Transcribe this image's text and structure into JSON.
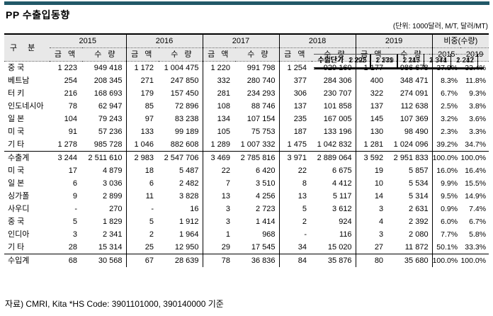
{
  "title": "PP 수출입동향",
  "unit_note": "(단위: 1000달러, M/T, 달러/MT)",
  "accent_color": "#215868",
  "header_bg_color": "#E8E8E8",
  "footer": "자료) CMRI, Kita *HS Code: 3901101000, 390140000 기준",
  "table": {
    "group_header": "구 분",
    "amount_label": "금 액",
    "quantity_label": "수 량",
    "share_header": "비중(수량)",
    "years": [
      "2015",
      "2016",
      "2017",
      "2018",
      "2019"
    ],
    "share_years": [
      "2015",
      "2019"
    ],
    "export_rows": [
      {
        "label": "중 국",
        "amounts": [
          "1 223",
          "1 172",
          "1 220",
          "1 254",
          "1 177"
        ],
        "quantities": [
          "949 418",
          "1 004 475",
          "991 798",
          "929 160",
          "986 678"
        ],
        "shares": [
          "37.8%",
          "33.4%"
        ]
      },
      {
        "label": "베트남",
        "amounts": [
          "254",
          "271",
          "332",
          "377",
          "400"
        ],
        "quantities": [
          "208 345",
          "247 850",
          "280 740",
          "284 306",
          "348 471"
        ],
        "shares": [
          "8.3%",
          "11.8%"
        ]
      },
      {
        "label": "터 키",
        "amounts": [
          "216",
          "179",
          "281",
          "306",
          "322"
        ],
        "quantities": [
          "168 693",
          "157 450",
          "234 293",
          "230 707",
          "274 091"
        ],
        "shares": [
          "6.7%",
          "9.3%"
        ]
      },
      {
        "label": "인도네시아",
        "amounts": [
          "78",
          "85",
          "108",
          "137",
          "137"
        ],
        "quantities": [
          "62 947",
          "72 896",
          "88 746",
          "101 858",
          "112 638"
        ],
        "shares": [
          "2.5%",
          "3.8%"
        ]
      },
      {
        "label": "일 본",
        "amounts": [
          "104",
          "97",
          "134",
          "235",
          "145"
        ],
        "quantities": [
          "79 243",
          "83 238",
          "107 154",
          "167 005",
          "107 369"
        ],
        "shares": [
          "3.2%",
          "3.6%"
        ]
      },
      {
        "label": "미 국",
        "amounts": [
          "91",
          "133",
          "105",
          "187",
          "130"
        ],
        "quantities": [
          "57 236",
          "99 189",
          "75 753",
          "133 196",
          "98 490"
        ],
        "shares": [
          "2.3%",
          "3.3%"
        ]
      },
      {
        "label": "기 타",
        "amounts": [
          "1 278",
          "1 046",
          "1 289",
          "1 475",
          "1 281"
        ],
        "quantities": [
          "985 728",
          "882 608",
          "1 007 332",
          "1 042 832",
          "1 024 096"
        ],
        "shares": [
          "39.2%",
          "34.7%"
        ]
      }
    ],
    "export_total": {
      "label": "수출계",
      "amounts": [
        "3 244",
        "2 983",
        "3 469",
        "3 971",
        "3 592"
      ],
      "quantities": [
        "2 511 610",
        "2 547 706",
        "2 785 816",
        "2 889 064",
        "2 951 833"
      ],
      "shares": [
        "100.0%",
        "100.0%"
      ]
    },
    "export_unit_price": {
      "label": "수출단가",
      "quantities": [
        "1 292",
        "1 171",
        "1 245",
        "1 374",
        "1 217"
      ]
    },
    "import_rows": [
      {
        "label": "미 국",
        "amounts": [
          "17",
          "18",
          "22",
          "22",
          "19"
        ],
        "quantities": [
          "4 879",
          "5 487",
          "6 420",
          "6 675",
          "5 857"
        ],
        "shares": [
          "16.0%",
          "16.4%"
        ]
      },
      {
        "label": "일 본",
        "amounts": [
          "6",
          "6",
          "7",
          "8",
          "10"
        ],
        "quantities": [
          "3 036",
          "2 482",
          "3 510",
          "4 412",
          "5 534"
        ],
        "shares": [
          "9.9%",
          "15.5%"
        ]
      },
      {
        "label": "싱가폴",
        "amounts": [
          "9",
          "11",
          "13",
          "13",
          "14"
        ],
        "quantities": [
          "2 899",
          "3 828",
          "4 256",
          "5 117",
          "5 314"
        ],
        "shares": [
          "9.5%",
          "14.9%"
        ]
      },
      {
        "label": "사우디",
        "amounts": [
          "-",
          "-",
          "3",
          "5",
          "3"
        ],
        "quantities": [
          "270",
          "16",
          "2 723",
          "3 612",
          "2 631"
        ],
        "shares": [
          "0.9%",
          "7.4%"
        ]
      },
      {
        "label": "중 국",
        "amounts": [
          "5",
          "5",
          "3",
          "2",
          "4"
        ],
        "quantities": [
          "1 829",
          "1 912",
          "1 414",
          "924",
          "2 392"
        ],
        "shares": [
          "6.0%",
          "6.7%"
        ]
      },
      {
        "label": "인디아",
        "amounts": [
          "3",
          "2",
          "1",
          "-",
          "3"
        ],
        "quantities": [
          "2 341",
          "1 964",
          "968",
          "116",
          "2 080"
        ],
        "shares": [
          "7.7%",
          "5.8%"
        ]
      },
      {
        "label": "기 타",
        "amounts": [
          "28",
          "25",
          "29",
          "34",
          "27"
        ],
        "quantities": [
          "15 314",
          "12 950",
          "17 545",
          "15 020",
          "11 872"
        ],
        "shares": [
          "50.1%",
          "33.3%"
        ]
      }
    ],
    "import_total": {
      "label": "수입계",
      "amounts": [
        "68",
        "67",
        "78",
        "84",
        "80"
      ],
      "quantities": [
        "30 568",
        "28 639",
        "36 836",
        "35 876",
        "35 680"
      ],
      "shares": [
        "100.0%",
        "100.0%"
      ]
    },
    "import_unit_price": {
      "label": "수입단가",
      "quantities": [
        "2 225",
        "2 339",
        "2 117",
        "2 341",
        "2 242"
      ]
    }
  }
}
